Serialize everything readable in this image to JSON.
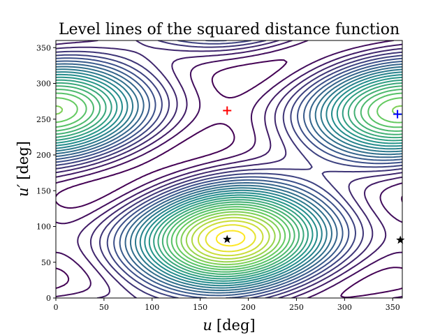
{
  "chart_data": {
    "type": "contour",
    "title": "Level lines of the squared distance function",
    "xlabel_var": "u",
    "xlabel_unit": "[deg]",
    "ylabel_var": "u′",
    "ylabel_unit": "[deg]",
    "xlim": [
      0,
      360
    ],
    "ylim": [
      0,
      360
    ],
    "xticks": [
      0,
      50,
      100,
      150,
      200,
      250,
      300,
      350
    ],
    "yticks": [
      0,
      50,
      100,
      150,
      200,
      250,
      300,
      350
    ],
    "grid": false,
    "colormap": "viridis",
    "colormap_stops": [
      "#440154",
      "#3b528b",
      "#21918c",
      "#5ec962",
      "#fde725"
    ],
    "markers": [
      {
        "symbol": "plus",
        "color": "#ff0000",
        "x": 178,
        "y": 262,
        "meaning": "maximum"
      },
      {
        "symbol": "plus",
        "color": "#0000ff",
        "x": 355,
        "y": 257,
        "meaning": "minimum"
      },
      {
        "symbol": "star",
        "color": "#000000",
        "x": 178,
        "y": 82,
        "meaning": "saddle"
      },
      {
        "symbol": "star",
        "color": "#000000",
        "x": 358,
        "y": 81,
        "meaning": "saddle"
      }
    ]
  }
}
